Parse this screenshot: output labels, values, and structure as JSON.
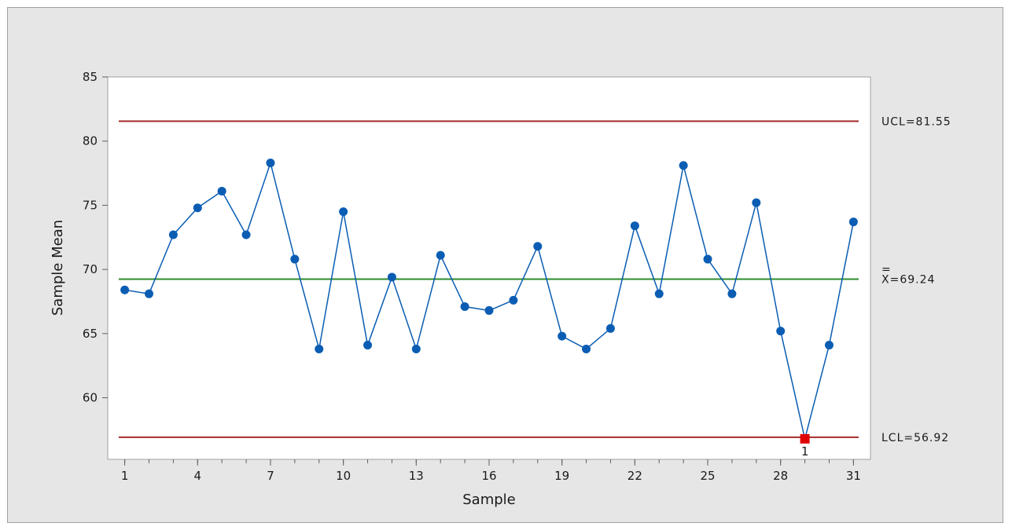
{
  "chart_data": {
    "type": "line",
    "xlabel": "Sample",
    "ylabel": "Sample Mean",
    "xlim": [
      0.3,
      31.7
    ],
    "ylim": [
      55.2,
      85
    ],
    "xticks": [
      1,
      4,
      7,
      10,
      13,
      16,
      19,
      22,
      25,
      28,
      31
    ],
    "yticks": [
      60,
      65,
      70,
      75,
      80,
      85
    ],
    "x": [
      1,
      2,
      3,
      4,
      5,
      6,
      7,
      8,
      9,
      10,
      11,
      12,
      13,
      14,
      15,
      16,
      17,
      18,
      19,
      20,
      21,
      22,
      23,
      24,
      25,
      26,
      27,
      28,
      29,
      30,
      31
    ],
    "series": [
      {
        "values": [
          68.4,
          68.1,
          72.7,
          74.8,
          76.1,
          72.7,
          78.3,
          70.8,
          63.8,
          74.5,
          64.1,
          69.4,
          63.8,
          71.1,
          67.1,
          66.8,
          67.6,
          71.8,
          64.8,
          63.8,
          65.4,
          73.4,
          68.1,
          78.1,
          70.8,
          68.1,
          75.2,
          65.2,
          56.8,
          64.1,
          73.7
        ],
        "color": "#0a5db3"
      }
    ],
    "reference_lines": [
      {
        "value": 81.55,
        "label": "UCL=81.55",
        "color": "#a52a2a"
      },
      {
        "value": 69.24,
        "label": "X=69.24",
        "overbar": "=",
        "color": "#2e8b2e"
      },
      {
        "value": 56.92,
        "label": "LCL=56.92",
        "color": "#a52a2a"
      }
    ],
    "flagged_points": [
      {
        "x": 29,
        "label": "1",
        "color": "#e00000"
      }
    ],
    "grid": false
  }
}
